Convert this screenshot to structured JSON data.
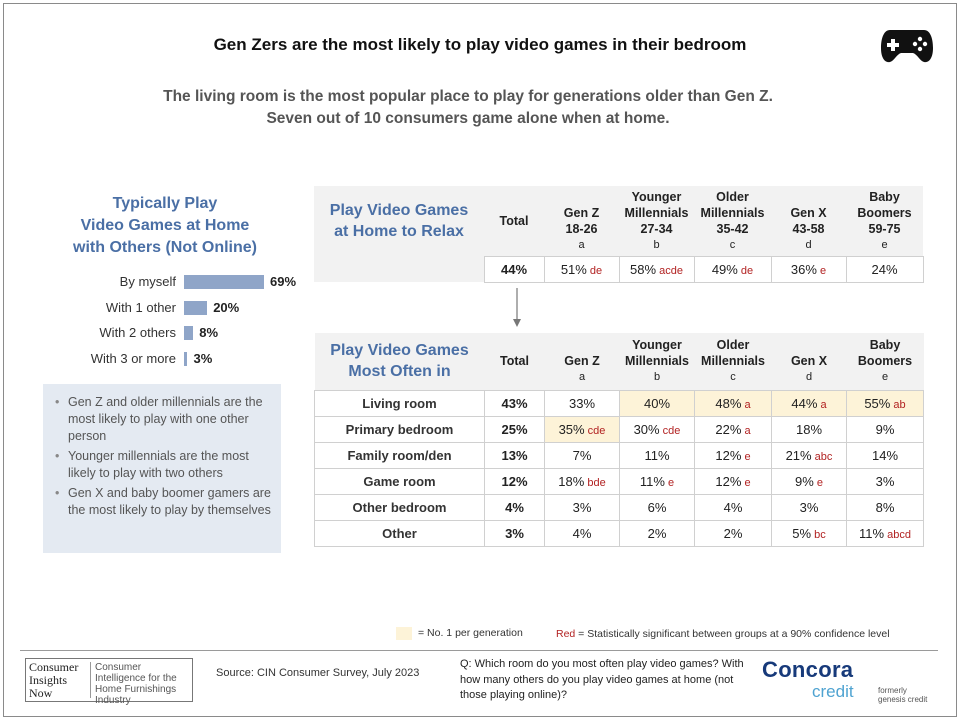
{
  "title": "Gen Zers are the most likely to play video games in their bedroom",
  "subtitle_line1": "The living room is the most popular place to play for generations older than Gen Z.",
  "subtitle_line2": "Seven out of 10 consumers game alone when at home.",
  "icon": "gamepad-icon",
  "colors": {
    "bar": "#8fa5c8",
    "accent_title": "#4a6fa5",
    "highlight": "#fdf3d8",
    "significance": "#b22222",
    "notes_bg": "#e4eaf2"
  },
  "left_chart": {
    "title_lines": [
      "Typically Play",
      "Video Games at Home",
      "with Others (Not Online)"
    ]
  },
  "notes": [
    "Gen Z and older millennials are the most likely to play with one other person",
    "Younger millennials are the most likely to play with two others",
    "Gen X and baby boomer gamers are the most likely to play by themselves"
  ],
  "generations": [
    {
      "line1": "",
      "line2": "Gen Z",
      "line3": "18-26",
      "letter": "a"
    },
    {
      "line1": "Younger",
      "line2": "Millennials",
      "line3": "27-34",
      "letter": "b"
    },
    {
      "line1": "Older",
      "line2": "Millennials",
      "line3": "35-42",
      "letter": "c"
    },
    {
      "line1": "",
      "line2": "Gen X",
      "line3": "43-58",
      "letter": "d"
    },
    {
      "line1": "Baby",
      "line2": "Boomers",
      "line3": "59-75",
      "letter": "e"
    }
  ],
  "generations_short": [
    {
      "line1": "",
      "line2": "Gen Z",
      "letter": "a"
    },
    {
      "line1": "Younger",
      "line2": "Millennials",
      "letter": "b"
    },
    {
      "line1": "Older",
      "line2": "Millennials",
      "letter": "c"
    },
    {
      "line1": "",
      "line2": "Gen X",
      "letter": "d"
    },
    {
      "line1": "Baby",
      "line2": "Boomers",
      "letter": "e"
    }
  ],
  "total_label": "Total",
  "relax_table": {
    "title_lines": [
      "Play Video Games",
      "at Home to Relax"
    ],
    "total": "44%",
    "cells": [
      {
        "v": "51%",
        "s": "de"
      },
      {
        "v": "58%",
        "s": "acde"
      },
      {
        "v": "49%",
        "s": "de"
      },
      {
        "v": "36%",
        "s": "e"
      },
      {
        "v": "24%",
        "s": ""
      }
    ]
  },
  "room_table": {
    "title_lines": [
      "Play Video Games",
      "Most Often in"
    ],
    "rows": [
      {
        "label": "Living room",
        "total": "43%",
        "cells": [
          {
            "v": "33%",
            "s": "",
            "h": false
          },
          {
            "v": "40%",
            "s": "",
            "h": true
          },
          {
            "v": "48%",
            "s": "a",
            "h": true
          },
          {
            "v": "44%",
            "s": "a",
            "h": true
          },
          {
            "v": "55%",
            "s": "ab",
            "h": true
          }
        ]
      },
      {
        "label": "Primary bedroom",
        "total": "25%",
        "cells": [
          {
            "v": "35%",
            "s": "cde",
            "h": true
          },
          {
            "v": "30%",
            "s": "cde",
            "h": false
          },
          {
            "v": "22%",
            "s": "a",
            "h": false
          },
          {
            "v": "18%",
            "s": "",
            "h": false
          },
          {
            "v": "9%",
            "s": "",
            "h": false
          }
        ]
      },
      {
        "label": "Family room/den",
        "total": "13%",
        "cells": [
          {
            "v": "7%",
            "s": "",
            "h": false
          },
          {
            "v": "11%",
            "s": "",
            "h": false
          },
          {
            "v": "12%",
            "s": "e",
            "h": false
          },
          {
            "v": "21%",
            "s": "abc",
            "h": false
          },
          {
            "v": "14%",
            "s": "",
            "h": false
          }
        ]
      },
      {
        "label": "Game room",
        "total": "12%",
        "cells": [
          {
            "v": "18%",
            "s": "bde",
            "h": false
          },
          {
            "v": "11%",
            "s": "e",
            "h": false
          },
          {
            "v": "12%",
            "s": "e",
            "h": false
          },
          {
            "v": "9%",
            "s": "e",
            "h": false
          },
          {
            "v": "3%",
            "s": "",
            "h": false
          }
        ]
      },
      {
        "label": "Other bedroom",
        "total": "4%",
        "cells": [
          {
            "v": "3%",
            "s": "",
            "h": false
          },
          {
            "v": "6%",
            "s": "",
            "h": false
          },
          {
            "v": "4%",
            "s": "",
            "h": false
          },
          {
            "v": "3%",
            "s": "",
            "h": false
          },
          {
            "v": "8%",
            "s": "",
            "h": false
          }
        ]
      },
      {
        "label": "Other",
        "total": "3%",
        "cells": [
          {
            "v": "4%",
            "s": "",
            "h": false
          },
          {
            "v": "2%",
            "s": "",
            "h": false
          },
          {
            "v": "2%",
            "s": "",
            "h": false
          },
          {
            "v": "5%",
            "s": "bc",
            "h": false
          },
          {
            "v": "11%",
            "s": "abcd",
            "h": false
          }
        ]
      }
    ]
  },
  "legend": {
    "highlight_text": "= No. 1 per generation",
    "red_word": "Red",
    "red_text": " = Statistically significant between groups at a 90% confidence level"
  },
  "footer": {
    "logo_left": [
      "Consumer",
      "Insights",
      "Now"
    ],
    "logo_right": "Consumer Intelligence for the Home Furnishings Industry",
    "source": "Source:  CIN Consumer Survey, July 2023",
    "question": "Q: Which room do you most often play video games? With how many others do you play video games at home (not those playing online)?",
    "brand": "Concora",
    "brand_sub": "credit",
    "formerly": [
      "formerly",
      "genesis credit"
    ]
  },
  "chart_data": {
    "type": "bar",
    "orientation": "horizontal",
    "categories": [
      "By myself",
      "With 1 other",
      "With 2 others",
      "With 3 or more"
    ],
    "values": [
      69,
      20,
      8,
      3
    ],
    "value_labels": [
      "69%",
      "20%",
      "8%",
      "3%"
    ],
    "xlim": [
      0,
      100
    ]
  }
}
